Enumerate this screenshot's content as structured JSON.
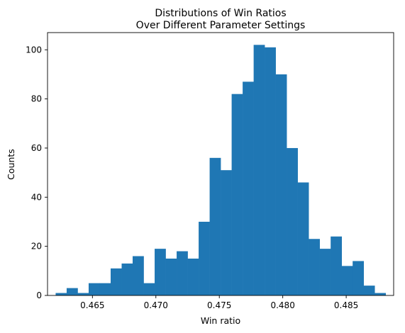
{
  "chart_data": {
    "type": "bar",
    "title_line1": "Distributions of Win Ratios",
    "title_line2": "Over Different Parameter Settings",
    "xlabel": "Win ratio",
    "ylabel": "Counts",
    "bin_start": 0.4621,
    "bin_width": 0.000867,
    "values": [
      1,
      3,
      1,
      5,
      5,
      11,
      13,
      16,
      5,
      19,
      15,
      18,
      15,
      30,
      56,
      51,
      82,
      87,
      102,
      101,
      90,
      60,
      46,
      23,
      19,
      24,
      12,
      14,
      4,
      1
    ],
    "xlim": [
      0.46146,
      0.48874
    ],
    "ylim": [
      0,
      107
    ],
    "xticks": [
      0.465,
      0.47,
      0.475,
      0.48,
      0.485
    ],
    "xtick_labels": [
      "0.465",
      "0.470",
      "0.475",
      "0.480",
      "0.485"
    ],
    "yticks": [
      0,
      20,
      40,
      60,
      80,
      100
    ],
    "ytick_labels": [
      "0",
      "20",
      "40",
      "60",
      "80",
      "100"
    ],
    "bar_color": "#1f77b4",
    "grid": false,
    "legend": "none"
  }
}
